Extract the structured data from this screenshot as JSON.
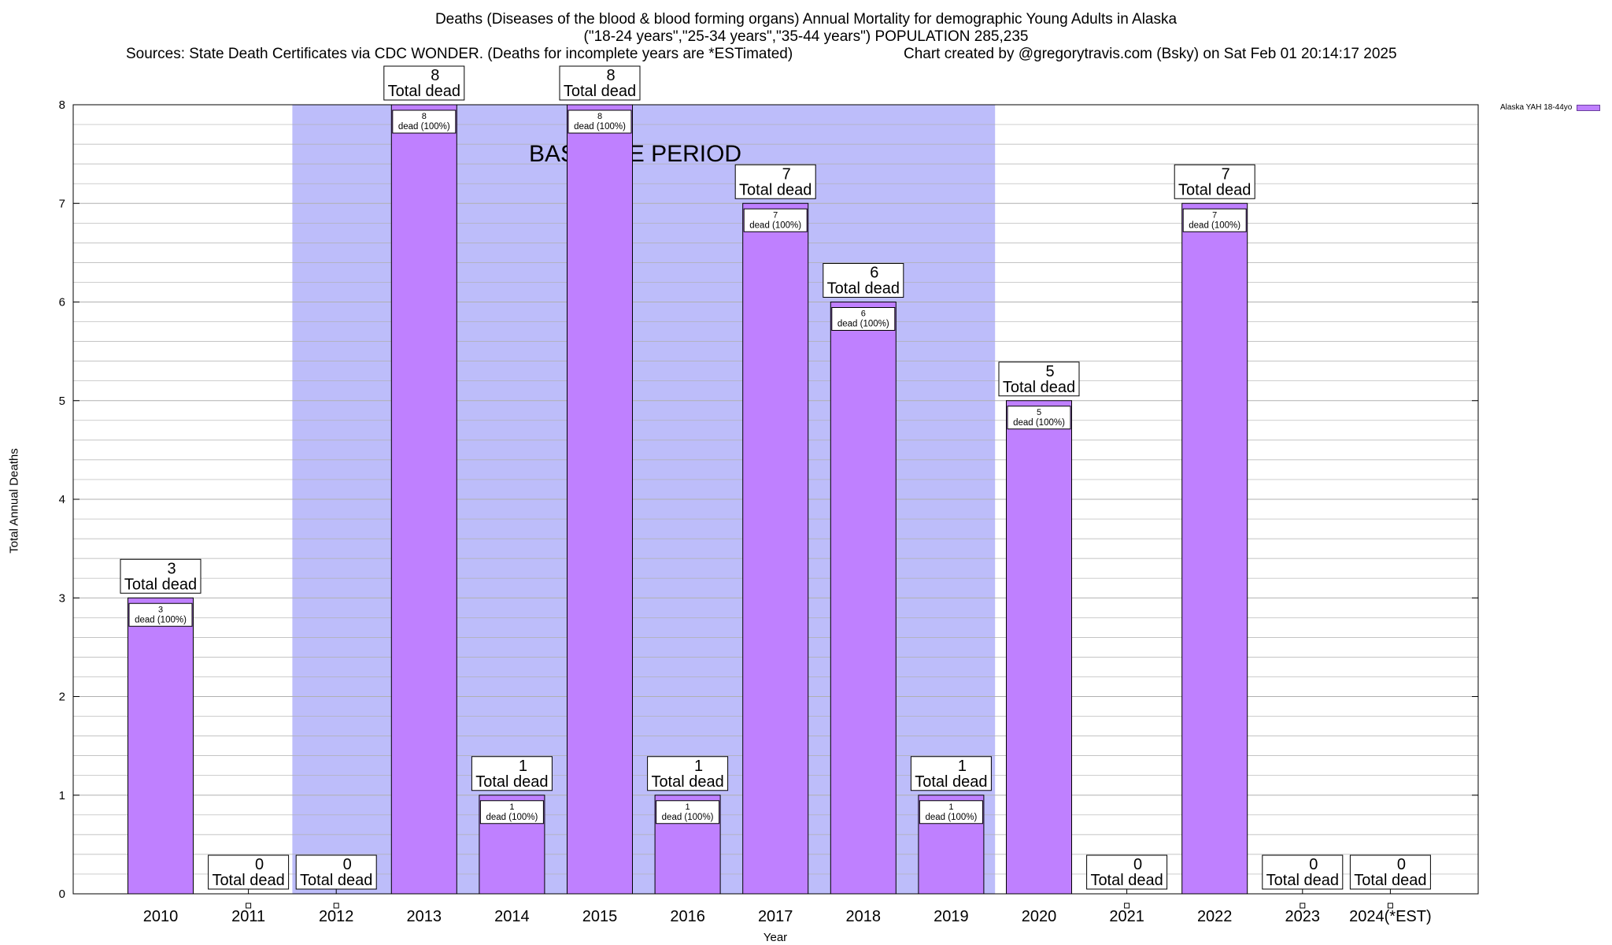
{
  "title": {
    "line1": "Deaths (Diseases of the blood & blood forming organs) Annual Mortality for demographic Young Adults in Alaska",
    "line2": "(\"18-24 years\",\"25-34 years\",\"35-44 years\") POPULATION 285,235",
    "sources": "Sources: State Death Certificates via CDC WONDER. (Deaths for incomplete years are *ESTimated)",
    "credit": "Chart created by @gregorytravis.com (Bsky) on Sat Feb 01 20:14:17 2025"
  },
  "legend": {
    "label": "Alaska YAH 18-44yo"
  },
  "colors": {
    "bar": "#bf80ff",
    "baseline": "#bdbdfa",
    "grid": "#b0b0b0"
  },
  "chart_data": {
    "type": "bar",
    "title": "Deaths (Diseases of the blood & blood forming organs) Annual Mortality for demographic Young Adults in Alaska",
    "xlabel": "Year",
    "ylabel": "Total Annual Deaths",
    "ylim": [
      0,
      8
    ],
    "yticks": [
      0,
      1,
      2,
      3,
      4,
      5,
      6,
      7,
      8
    ],
    "categories": [
      "2010",
      "2011",
      "2012",
      "2013",
      "2014",
      "2015",
      "2016",
      "2017",
      "2018",
      "2019",
      "2020",
      "2021",
      "2022",
      "2023",
      "2024(*EST)"
    ],
    "series": [
      {
        "name": "Alaska YAH 18-44yo",
        "values": [
          3,
          0,
          0,
          8,
          1,
          8,
          1,
          7,
          6,
          1,
          5,
          0,
          7,
          0,
          0
        ]
      }
    ],
    "total_label": "Total dead",
    "inner_label": "dead (100%)",
    "baseline_period": {
      "label": "BASELINE PERIOD",
      "from": "2012",
      "to": "2019"
    },
    "grid": true,
    "legend_position": "top-right"
  }
}
